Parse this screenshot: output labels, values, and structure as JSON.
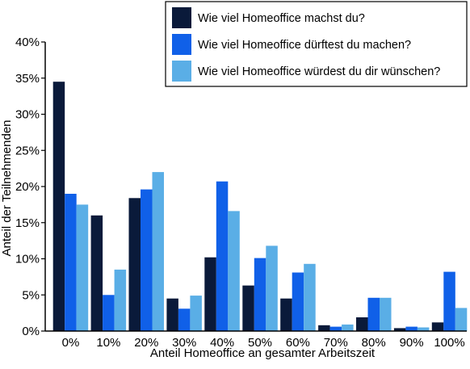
{
  "chart_data": {
    "type": "bar",
    "categories": [
      "0%",
      "10%",
      "20%",
      "30%",
      "40%",
      "50%",
      "60%",
      "70%",
      "80%",
      "90%",
      "100%"
    ],
    "series": [
      {
        "name": "Wie viel Homeoffice machst du?",
        "color": "#0a1a3a",
        "values": [
          34.5,
          16.0,
          18.4,
          4.5,
          10.2,
          6.3,
          4.5,
          0.8,
          1.9,
          0.4,
          1.2
        ]
      },
      {
        "name": "Wie viel Homeoffice dürftest du machen?",
        "color": "#1060e8",
        "values": [
          19.0,
          5.0,
          19.6,
          3.1,
          20.7,
          10.1,
          8.1,
          0.6,
          4.6,
          0.6,
          8.2
        ]
      },
      {
        "name": "Wie viel Homeoffice würdest du dir wünschen?",
        "color": "#5aaee6",
        "values": [
          17.5,
          8.5,
          22.0,
          4.9,
          16.6,
          11.8,
          9.3,
          0.9,
          4.6,
          0.5,
          3.2
        ]
      }
    ],
    "xlabel": "Anteil Homeoffice an gesamter Arbeitszeit",
    "ylabel": "Anteil der Teilnehmenden",
    "ylim": [
      0,
      40
    ],
    "yticks": [
      "0%",
      "5%",
      "10%",
      "15%",
      "20%",
      "25%",
      "30%",
      "35%",
      "40%"
    ],
    "ytick_values": [
      0,
      5,
      10,
      15,
      20,
      25,
      30,
      35,
      40
    ],
    "legend_position": "top-right",
    "grid": false
  }
}
